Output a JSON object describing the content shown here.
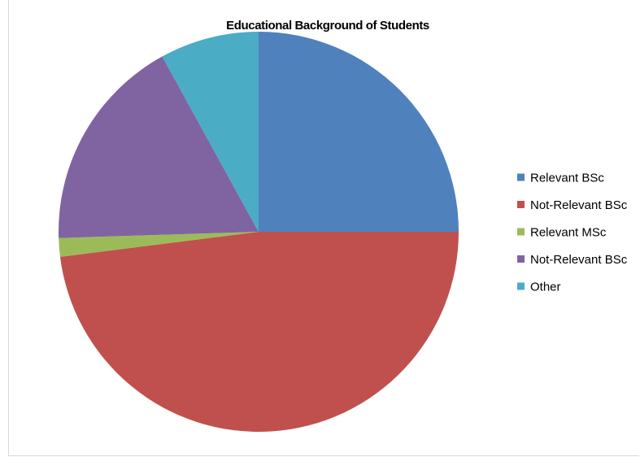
{
  "chart_data": {
    "type": "pie",
    "title": "Educational Background of Students",
    "start_angle_deg": 0,
    "direction": "clockwise",
    "legend_position": "right",
    "slices": [
      {
        "label": "Relevant BSc",
        "value": 25,
        "color": "#4F81BD"
      },
      {
        "label": "Not-Relevant BSc",
        "value": 48,
        "color": "#C0504D"
      },
      {
        "label": "Relevant MSc",
        "value": 1.5,
        "color": "#9BBB59"
      },
      {
        "label": "Not-Relevant BSc",
        "value": 17.5,
        "color": "#8064A2"
      },
      {
        "label": "Other",
        "value": 8,
        "color": "#4BACC6"
      }
    ]
  }
}
